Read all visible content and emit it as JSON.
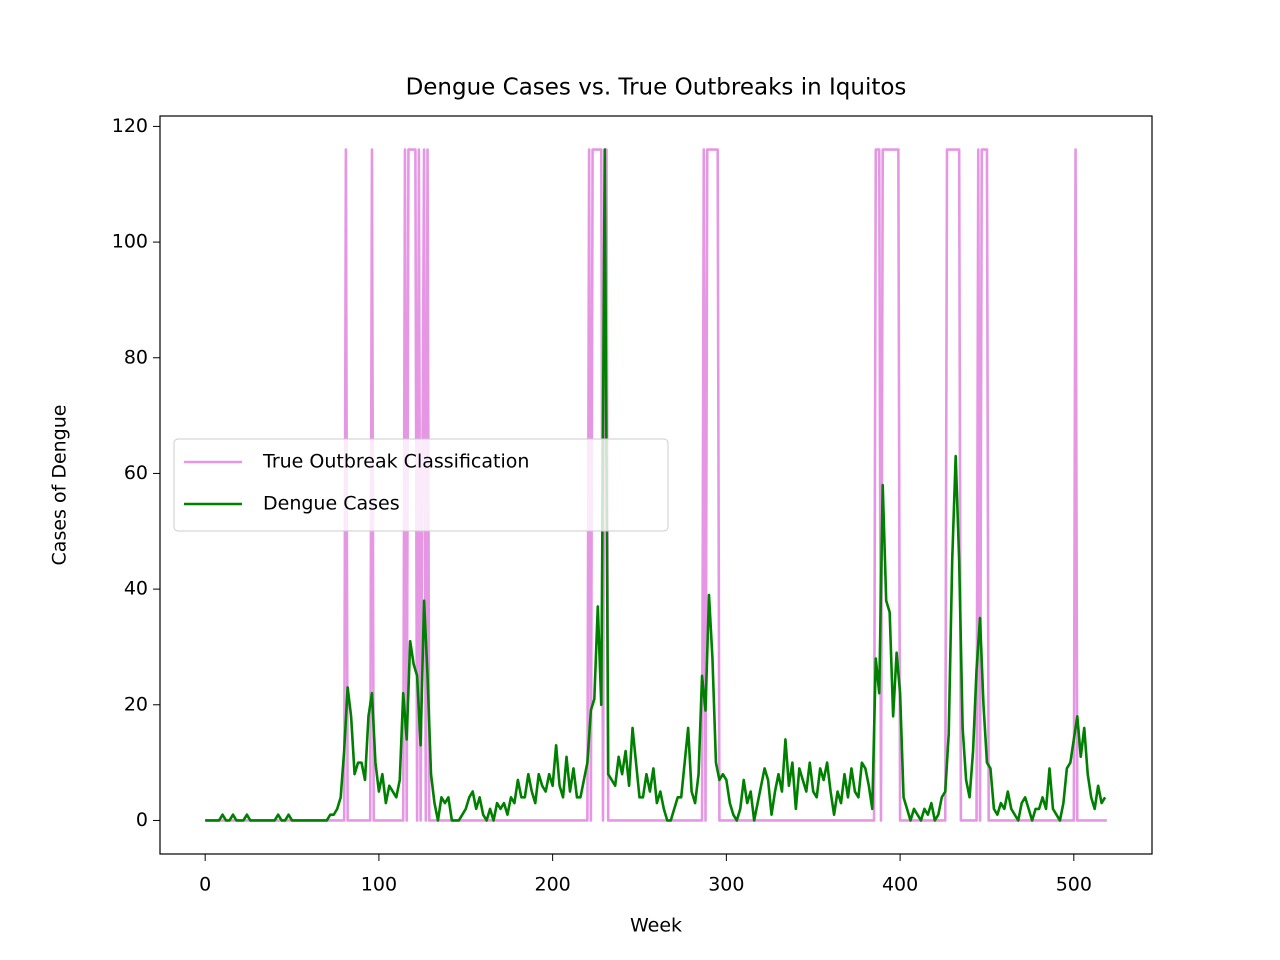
{
  "chart_data": {
    "type": "line",
    "title": "Dengue Cases vs. True Outbreaks in Iquitos",
    "x_label": "Week",
    "y_label": "Cases of Dengue",
    "xlim": [
      -26,
      545
    ],
    "xticks": [
      0,
      100,
      200,
      300,
      400,
      500
    ],
    "ylim": [
      -5.8,
      121.8
    ],
    "yticks": [
      0,
      20,
      40,
      60,
      80,
      100,
      120
    ],
    "legend": "center left",
    "series": [
      {
        "name": "True Outbreak Classification",
        "color": "#e597e4",
        "x": [
          0,
          80,
          81,
          82,
          95,
          96,
          97,
          114,
          115,
          116,
          117,
          121,
          122,
          123,
          124,
          126,
          127,
          128,
          129,
          220,
          221,
          222,
          223,
          228,
          229,
          230,
          231,
          232,
          286,
          287,
          288,
          289,
          295,
          296,
          385,
          386,
          388,
          389,
          390,
          399,
          400,
          426,
          427,
          434,
          435,
          444,
          445,
          446,
          447,
          450,
          451,
          500,
          501,
          502,
          519
        ],
        "values": [
          0,
          0,
          116,
          0,
          0,
          116,
          0,
          0,
          116,
          0,
          116,
          116,
          0,
          116,
          0,
          116,
          0,
          116,
          0,
          0,
          116,
          0,
          116,
          116,
          0,
          116,
          116,
          0,
          0,
          116,
          0,
          116,
          116,
          0,
          0,
          116,
          116,
          0,
          116,
          116,
          0,
          0,
          116,
          116,
          0,
          0,
          116,
          0,
          116,
          116,
          0,
          0,
          116,
          0,
          0
        ]
      },
      {
        "name": "Dengue Cases",
        "color": "#008000",
        "x": [
          0,
          2,
          4,
          6,
          8,
          10,
          12,
          14,
          16,
          18,
          20,
          22,
          24,
          26,
          28,
          30,
          32,
          34,
          36,
          38,
          40,
          42,
          44,
          46,
          48,
          50,
          52,
          54,
          56,
          58,
          60,
          62,
          64,
          66,
          68,
          70,
          72,
          74,
          76,
          78,
          80,
          82,
          84,
          86,
          88,
          90,
          92,
          94,
          96,
          98,
          100,
          102,
          104,
          106,
          108,
          110,
          112,
          114,
          116,
          118,
          120,
          122,
          124,
          126,
          128,
          130,
          132,
          134,
          136,
          138,
          140,
          142,
          144,
          146,
          148,
          150,
          152,
          154,
          156,
          158,
          160,
          162,
          164,
          166,
          168,
          170,
          172,
          174,
          176,
          178,
          180,
          182,
          184,
          186,
          188,
          190,
          192,
          194,
          196,
          198,
          200,
          202,
          204,
          206,
          208,
          210,
          212,
          214,
          216,
          218,
          220,
          222,
          224,
          226,
          228,
          230,
          232,
          234,
          236,
          238,
          240,
          242,
          244,
          246,
          248,
          250,
          252,
          254,
          256,
          258,
          260,
          262,
          264,
          266,
          268,
          270,
          272,
          274,
          276,
          278,
          280,
          282,
          284,
          286,
          288,
          290,
          292,
          294,
          296,
          298,
          300,
          302,
          304,
          306,
          308,
          310,
          312,
          314,
          316,
          318,
          320,
          322,
          324,
          326,
          328,
          330,
          332,
          334,
          336,
          338,
          340,
          342,
          344,
          346,
          348,
          350,
          352,
          354,
          356,
          358,
          360,
          362,
          364,
          366,
          368,
          370,
          372,
          374,
          376,
          378,
          380,
          382,
          384,
          386,
          388,
          390,
          392,
          394,
          396,
          398,
          400,
          402,
          404,
          406,
          408,
          410,
          412,
          414,
          416,
          418,
          420,
          422,
          424,
          426,
          428,
          430,
          432,
          434,
          436,
          438,
          440,
          442,
          444,
          446,
          448,
          450,
          452,
          454,
          456,
          458,
          460,
          462,
          464,
          466,
          468,
          470,
          472,
          474,
          476,
          478,
          480,
          482,
          484,
          486,
          488,
          490,
          492,
          494,
          496,
          498,
          500,
          502,
          504,
          506,
          508,
          510,
          512,
          514,
          516,
          518
        ],
        "values": [
          0,
          0,
          0,
          0,
          0,
          1,
          0,
          0,
          1,
          0,
          0,
          0,
          1,
          0,
          0,
          0,
          0,
          0,
          0,
          0,
          0,
          1,
          0,
          0,
          1,
          0,
          0,
          0,
          0,
          0,
          0,
          0,
          0,
          0,
          0,
          0,
          1,
          1,
          2,
          4,
          12,
          23,
          18,
          8,
          10,
          10,
          7,
          18,
          22,
          10,
          5,
          8,
          3,
          6,
          5,
          4,
          7,
          22,
          14,
          31,
          27,
          25,
          13,
          38,
          25,
          8,
          3,
          0,
          4,
          3,
          4,
          0,
          0,
          0,
          1,
          2,
          4,
          5,
          2,
          4,
          1,
          0,
          2,
          0,
          3,
          2,
          3,
          1,
          4,
          3,
          7,
          4,
          4,
          8,
          5,
          3,
          8,
          6,
          5,
          8,
          6,
          13,
          6,
          4,
          11,
          5,
          9,
          4,
          4,
          7,
          10,
          19,
          21,
          37,
          20,
          116,
          8,
          7,
          6,
          11,
          8,
          12,
          6,
          16,
          10,
          4,
          4,
          8,
          5,
          9,
          3,
          5,
          2,
          0,
          0,
          2,
          4,
          4,
          10,
          16,
          5,
          3,
          8,
          25,
          19,
          39,
          28,
          10,
          7,
          8,
          7,
          3,
          1,
          0,
          2,
          7,
          3,
          5,
          0,
          3,
          6,
          9,
          7,
          1,
          5,
          8,
          5,
          14,
          6,
          10,
          2,
          9,
          7,
          5,
          10,
          5,
          4,
          9,
          7,
          10,
          5,
          1,
          5,
          3,
          8,
          4,
          9,
          5,
          4,
          10,
          9,
          6,
          2,
          28,
          22,
          58,
          38,
          36,
          18,
          29,
          22,
          4,
          2,
          0,
          2,
          1,
          0,
          2,
          1,
          3,
          0,
          1,
          4,
          5,
          15,
          45,
          63,
          45,
          16,
          7,
          4,
          12,
          26,
          35,
          20,
          10,
          9,
          2,
          1,
          3,
          2,
          5,
          2,
          1,
          0,
          3,
          4,
          2,
          0,
          2,
          2,
          4,
          2,
          9,
          2,
          1,
          0,
          3,
          9,
          10,
          14,
          18,
          11,
          16,
          8,
          4,
          2,
          6,
          3,
          4
        ]
      }
    ]
  }
}
